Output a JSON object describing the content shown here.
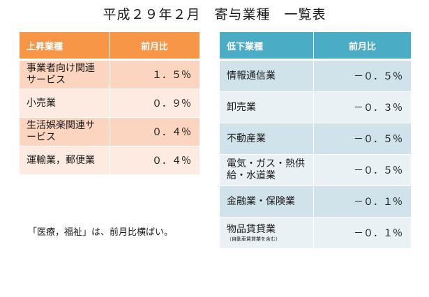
{
  "title": "平成２９年２月　寄与業種　一覧表",
  "left_table": {
    "header": [
      "上昇業種",
      "前月比"
    ],
    "rows": [
      {
        "name": "事業者向け関連サービス",
        "value": "１．５％"
      },
      {
        "name": "小売業",
        "value": "０．９％"
      },
      {
        "name": "生活娯楽関連サービス",
        "value": "０．４％"
      },
      {
        "name": "運輸業，郵便業",
        "value": "０．４％"
      }
    ]
  },
  "right_table": {
    "header": [
      "低下業種",
      "前月比"
    ],
    "rows": [
      {
        "name": "情報通信業",
        "value": "－０．５％"
      },
      {
        "name": "卸売業",
        "value": "－０．３％"
      },
      {
        "name": "不動産業",
        "value": "－０．５％"
      },
      {
        "name": "電気・ガス・熱供給・水道業",
        "value": "－０．５％"
      },
      {
        "name": "金融業・保険業",
        "value": "－０．１％"
      },
      {
        "name": "物品賃貸業",
        "note": "（自動車賃貸業を含む）",
        "value": "－０．１％"
      }
    ]
  },
  "note": "「医療，福祉」は、前月比横ばい。",
  "colors": {
    "rise_header": "#f79646",
    "rise_row_dark": "#fbd5c0",
    "rise_row_light": "#fdeae0",
    "fall_header": "#4bacc6",
    "fall_row_dark": "#d0e3ea",
    "fall_row_light": "#e9f1f5"
  }
}
